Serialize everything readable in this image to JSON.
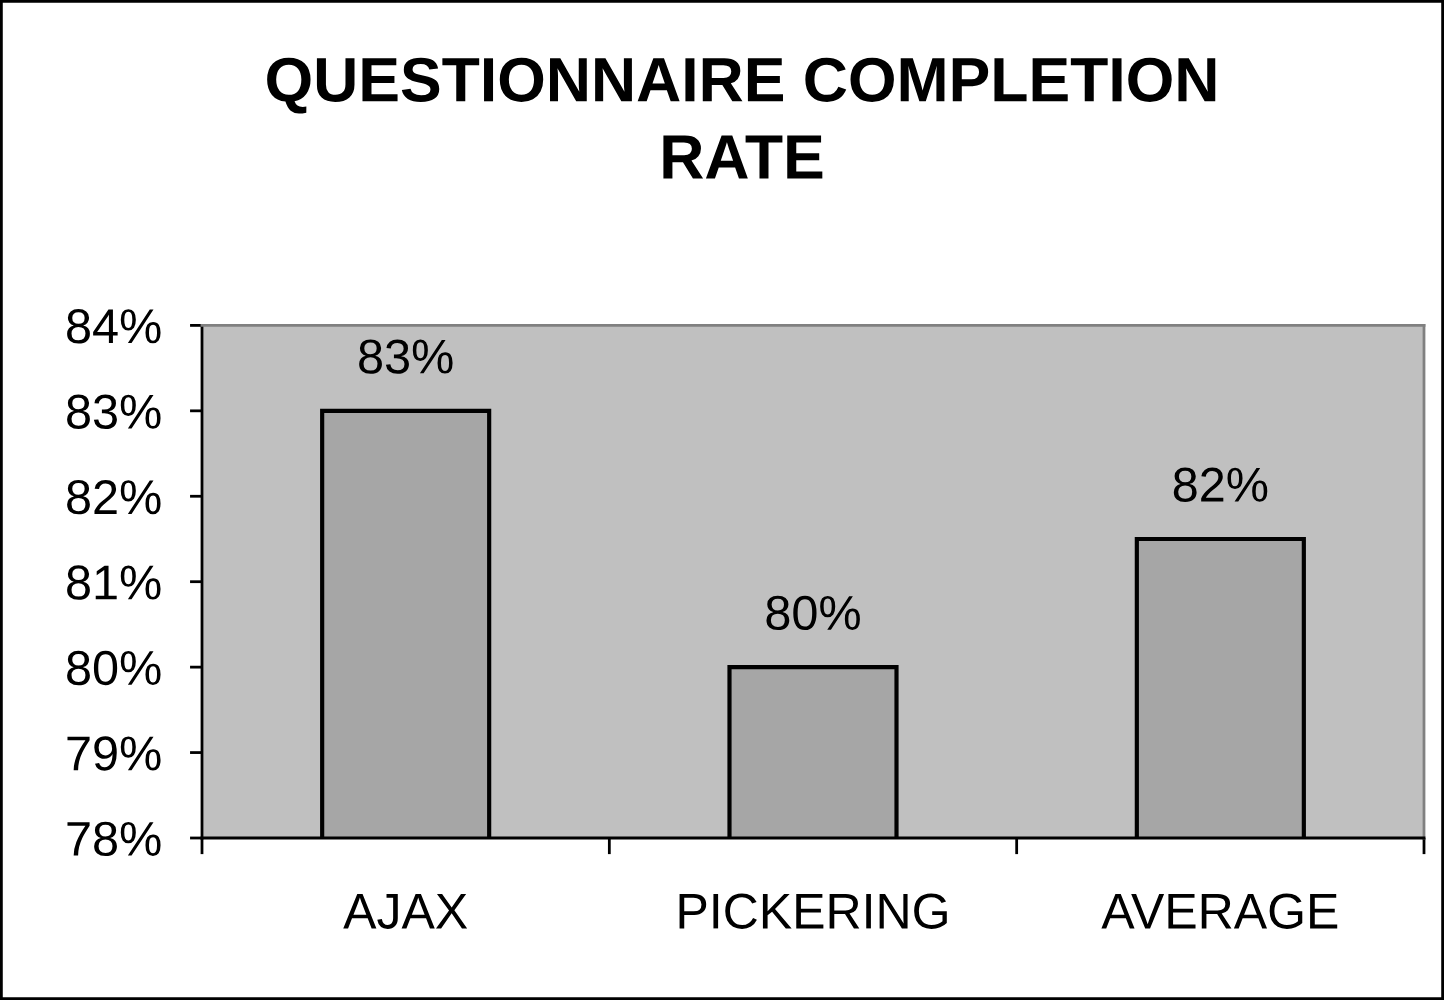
{
  "chart_data": {
    "type": "bar",
    "title": "QUESTIONNAIRE COMPLETION\nRATE",
    "categories": [
      "AJAX",
      "PICKERING",
      "AVERAGE"
    ],
    "values": [
      83.0,
      80.0,
      81.5
    ],
    "color": "#a6a6a6",
    "value_labels": [
      "83%",
      "80%",
      "82%"
    ],
    "ylim": [
      78,
      84
    ],
    "yticks": [
      {
        "value": 78,
        "label": "78%"
      },
      {
        "value": 79,
        "label": "79%"
      },
      {
        "value": 80,
        "label": "80%"
      },
      {
        "value": 81,
        "label": "81%"
      },
      {
        "value": 82,
        "label": "82%"
      },
      {
        "value": 83,
        "label": "83%"
      },
      {
        "value": 84,
        "label": "84%"
      }
    ]
  }
}
